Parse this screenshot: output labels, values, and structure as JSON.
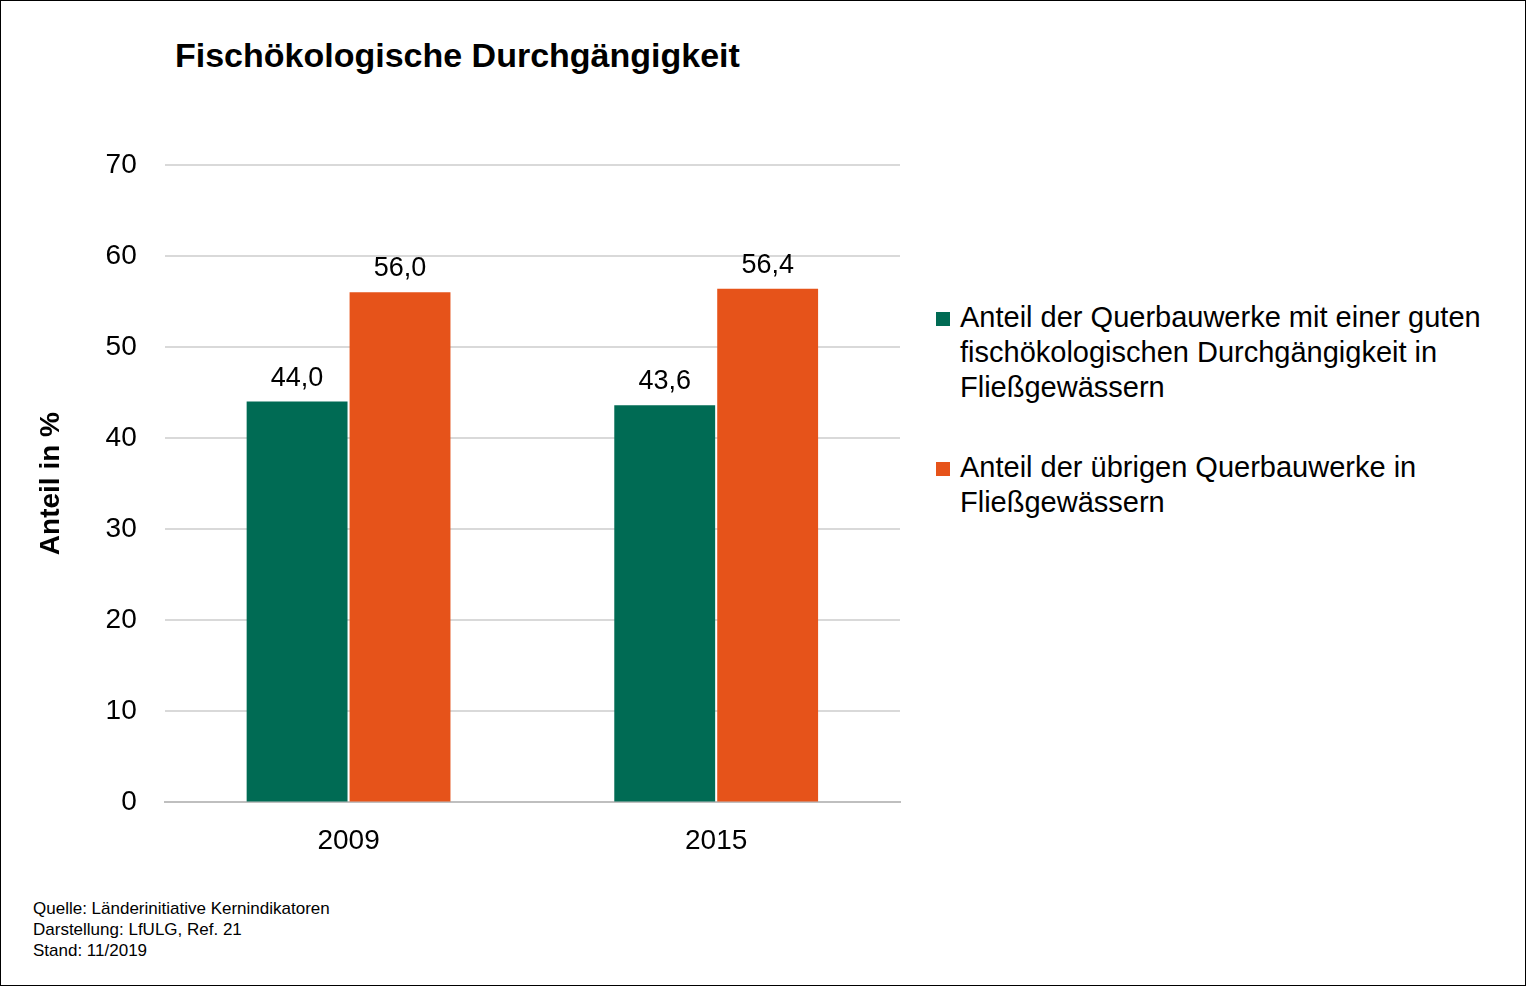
{
  "chart_data": {
    "type": "bar",
    "title": "Fischökologische Durchgängigkeit",
    "y_label": "Anteil in %",
    "categories": [
      "2009",
      "2015"
    ],
    "series": [
      {
        "name": "Anteil der Querbauwerke mit einer guten fischökologischen Durchgängigkeit in Fließgewässern",
        "color": "#006b54",
        "values": [
          44.0,
          43.6
        ],
        "value_labels": [
          "44,0",
          "43,6"
        ]
      },
      {
        "name": "Anteil der übrigen Querbauwerke in Fließgewässern",
        "color": "#e6531a",
        "values": [
          56.0,
          56.4
        ],
        "value_labels": [
          "56,0",
          "56,4"
        ]
      }
    ],
    "ylim": [
      0,
      70
    ],
    "yticks": [
      0,
      10,
      20,
      30,
      40,
      50,
      60,
      70
    ],
    "grid": true,
    "legend": "right",
    "data_labels": true,
    "annotations": [
      "Quelle: Länderinitiative Kernindikatoren",
      "Darstellung: LfULG, Ref. 21",
      "Stand: 11/2019"
    ]
  }
}
